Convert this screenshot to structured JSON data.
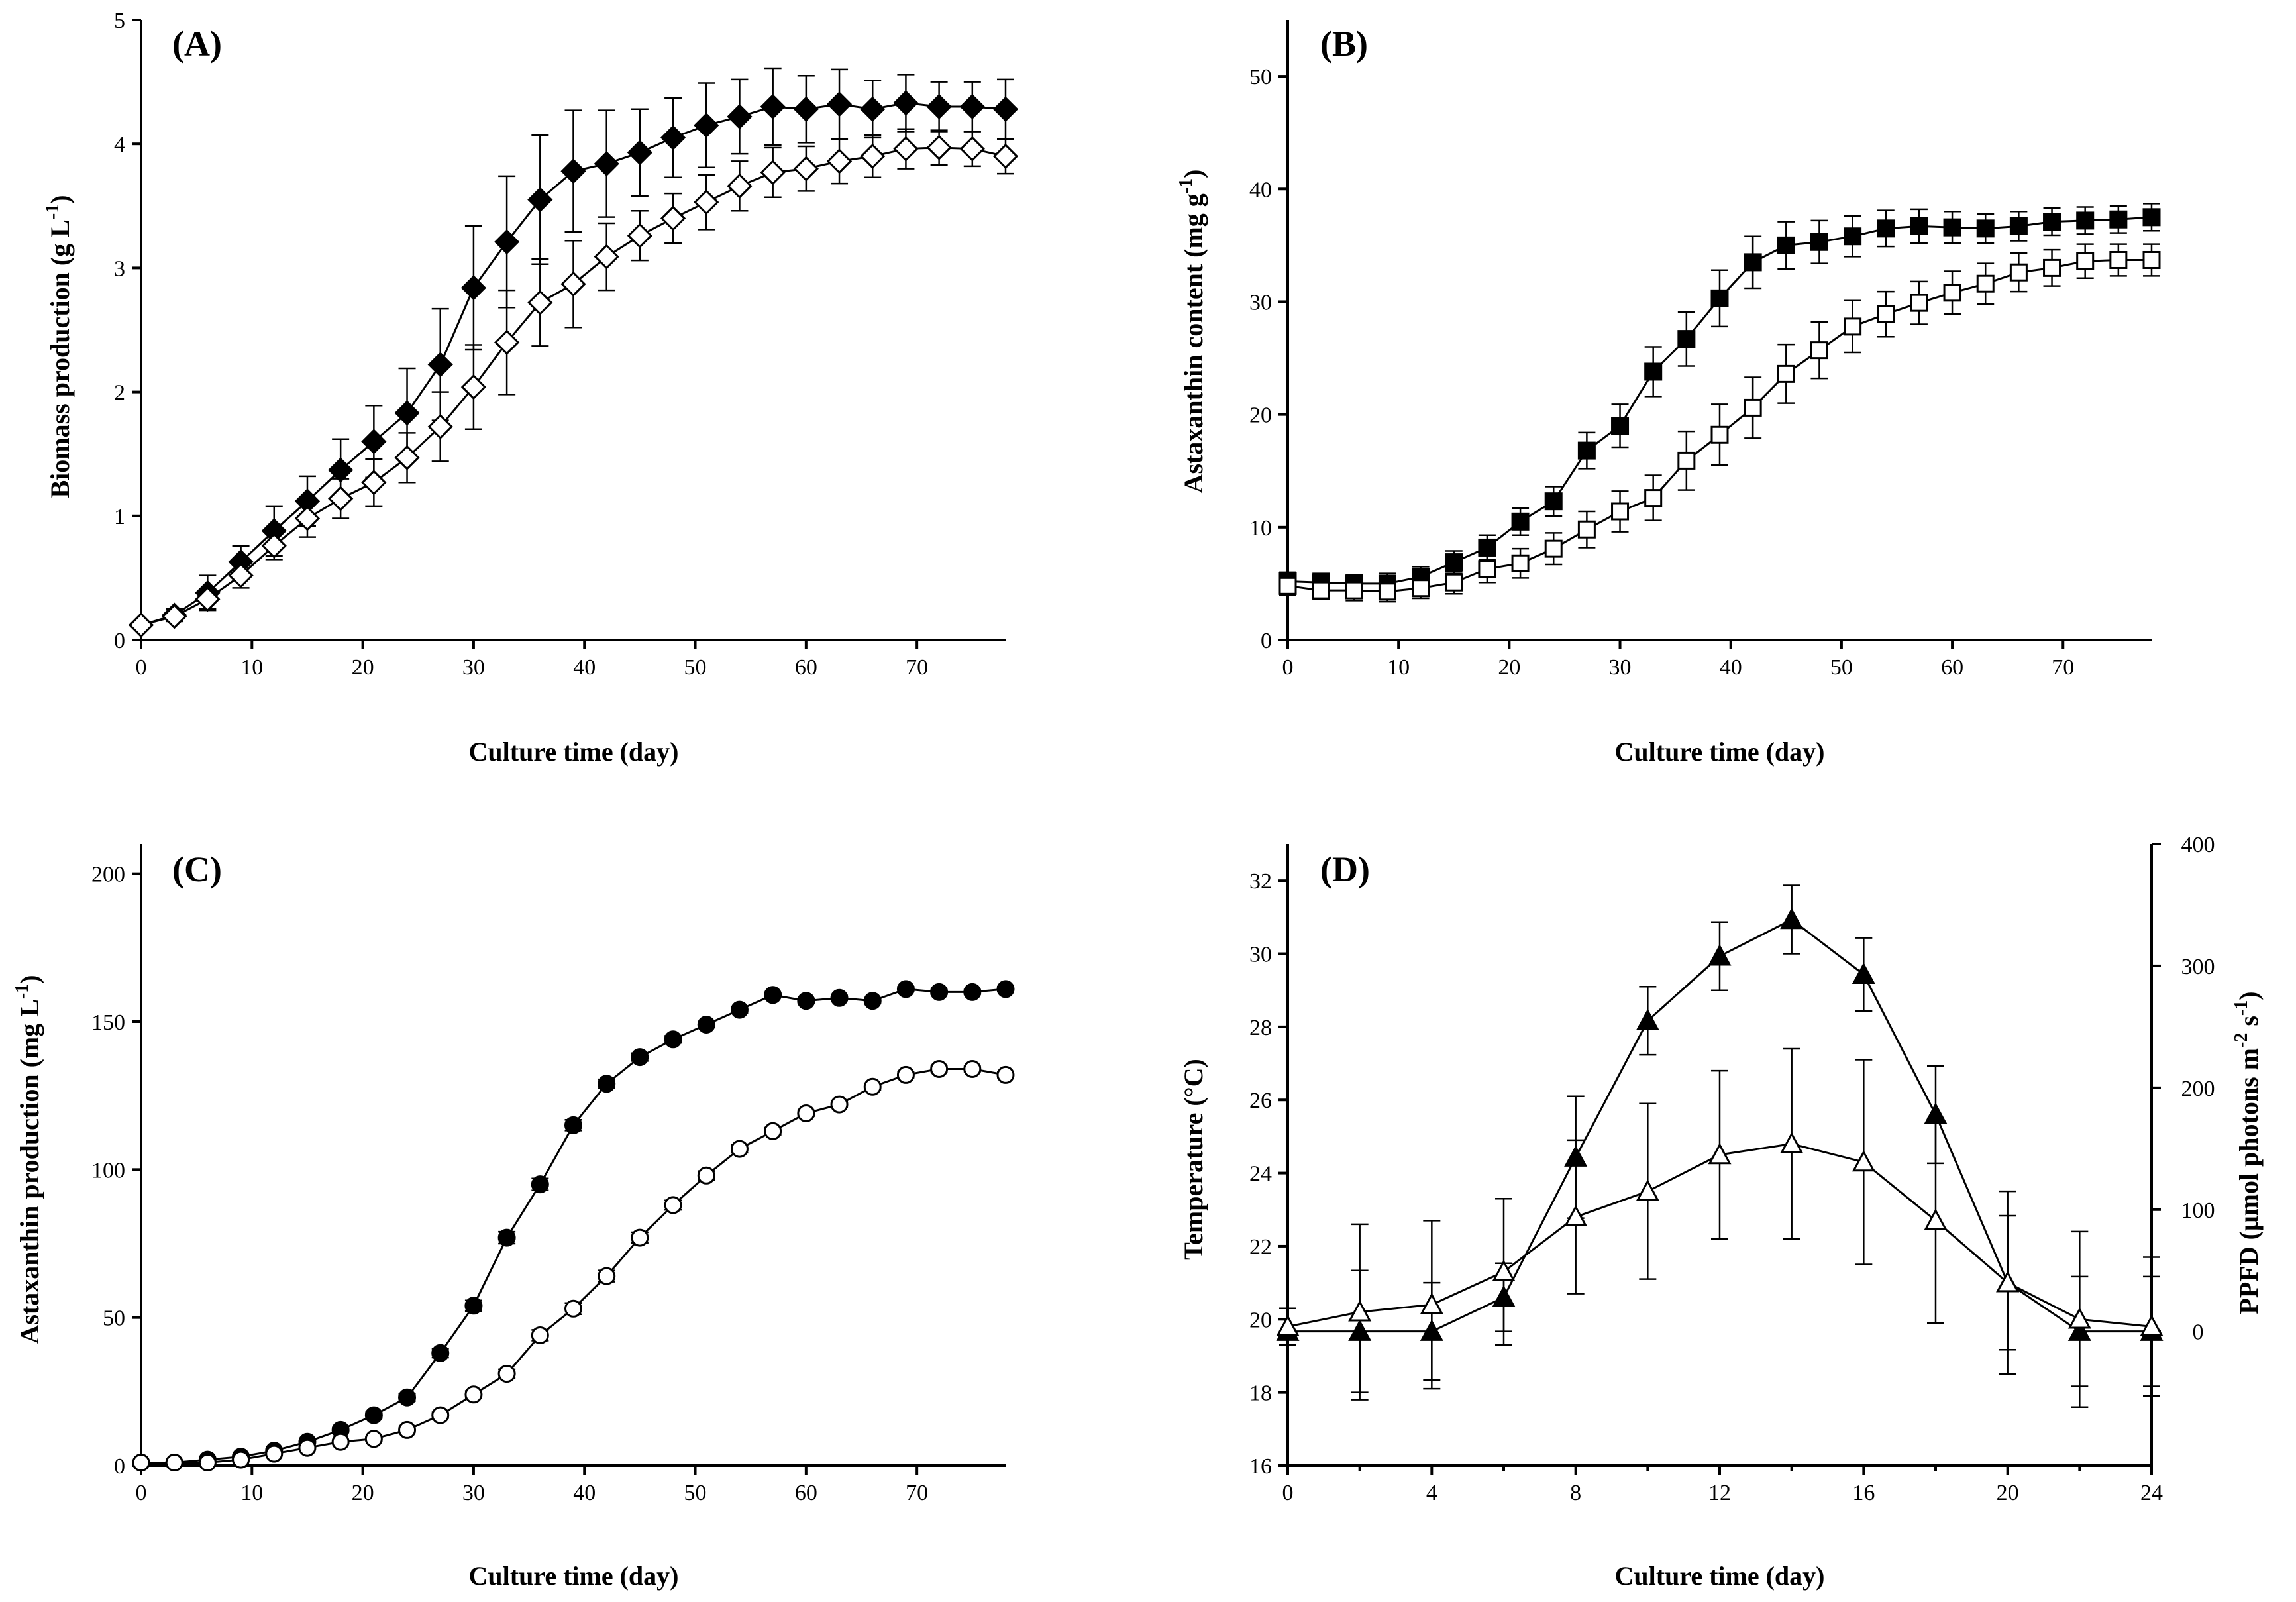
{
  "chart_data": [
    {
      "type": "line",
      "panel_label": "(A)",
      "xlabel": "Culture time (day)",
      "ylabel_main": "Biomass production (g L",
      "ylabel_sup": "-1",
      "ylabel_end": ")",
      "xlim": [
        0,
        78
      ],
      "ylim": [
        0,
        5
      ],
      "xticks": [
        0,
        10,
        20,
        30,
        40,
        50,
        60,
        70
      ],
      "yticks": [
        0,
        1,
        2,
        3,
        4,
        5
      ],
      "x": [
        0,
        3,
        6,
        9,
        12,
        15,
        18,
        21,
        24,
        27,
        30,
        33,
        36,
        39,
        42,
        45,
        48,
        51,
        54,
        57,
        60,
        63,
        66,
        69,
        72,
        75,
        78
      ],
      "series": [
        {
          "name": "filled diamond",
          "marker": "diamond",
          "filled": true,
          "values": [
            0.12,
            0.2,
            0.38,
            0.63,
            0.88,
            1.12,
            1.37,
            1.6,
            1.83,
            2.22,
            2.84,
            3.21,
            3.55,
            3.78,
            3.84,
            3.93,
            4.05,
            4.15,
            4.22,
            4.3,
            4.28,
            4.32,
            4.28,
            4.33,
            4.3,
            4.3,
            4.28
          ],
          "errors": [
            0.02,
            0.05,
            0.14,
            0.13,
            0.2,
            0.2,
            0.25,
            0.29,
            0.36,
            0.45,
            0.5,
            0.53,
            0.52,
            0.49,
            0.43,
            0.35,
            0.32,
            0.34,
            0.3,
            0.31,
            0.27,
            0.28,
            0.23,
            0.23,
            0.2,
            0.2,
            0.24
          ]
        },
        {
          "name": "open diamond",
          "marker": "diamond",
          "filled": false,
          "values": [
            0.12,
            0.19,
            0.33,
            0.52,
            0.76,
            0.98,
            1.14,
            1.27,
            1.47,
            1.72,
            2.04,
            2.4,
            2.72,
            2.87,
            3.09,
            3.26,
            3.4,
            3.53,
            3.66,
            3.77,
            3.8,
            3.86,
            3.9,
            3.96,
            3.97,
            3.96,
            3.9
          ],
          "errors": [
            0.02,
            0.04,
            0.08,
            0.1,
            0.11,
            0.15,
            0.16,
            0.19,
            0.2,
            0.28,
            0.34,
            0.42,
            0.35,
            0.35,
            0.27,
            0.2,
            0.2,
            0.22,
            0.2,
            0.2,
            0.18,
            0.18,
            0.17,
            0.16,
            0.14,
            0.14,
            0.14
          ]
        }
      ]
    },
    {
      "type": "line",
      "panel_label": "(B)",
      "xlabel": "Culture time (day)",
      "ylabel_main": "Astaxanthin content (mg g",
      "ylabel_sup": "-1",
      "ylabel_end": ")",
      "xlim": [
        0,
        78
      ],
      "ylim": [
        0,
        55
      ],
      "xticks": [
        0,
        10,
        20,
        30,
        40,
        50,
        60,
        70
      ],
      "yticks": [
        0,
        10,
        20,
        30,
        40,
        50
      ],
      "x": [
        0,
        3,
        6,
        9,
        12,
        15,
        18,
        21,
        24,
        27,
        30,
        33,
        36,
        39,
        42,
        45,
        48,
        51,
        54,
        57,
        60,
        63,
        66,
        69,
        72,
        75,
        78
      ],
      "series": [
        {
          "name": "filled square",
          "marker": "square",
          "filled": true,
          "values": [
            5.2,
            5.1,
            5.0,
            5.0,
            5.6,
            6.9,
            8.2,
            10.5,
            12.3,
            16.8,
            19.0,
            23.8,
            26.7,
            30.3,
            33.5,
            35.0,
            35.3,
            35.8,
            36.5,
            36.7,
            36.6,
            36.5,
            36.7,
            37.1,
            37.2,
            37.3,
            37.5
          ],
          "errors": [
            0.8,
            0.8,
            0.8,
            0.9,
            0.9,
            1.0,
            1.1,
            1.2,
            1.3,
            1.6,
            1.9,
            2.2,
            2.4,
            2.5,
            2.3,
            2.1,
            1.9,
            1.8,
            1.6,
            1.5,
            1.4,
            1.3,
            1.3,
            1.2,
            1.2,
            1.2,
            1.2
          ]
        },
        {
          "name": "open square",
          "marker": "square",
          "filled": false,
          "values": [
            4.8,
            4.4,
            4.4,
            4.3,
            4.6,
            5.1,
            6.3,
            6.8,
            8.1,
            9.8,
            11.4,
            12.6,
            15.9,
            18.2,
            20.6,
            23.6,
            25.7,
            27.8,
            28.9,
            29.9,
            30.8,
            31.6,
            32.6,
            33.0,
            33.6,
            33.7,
            33.7
          ],
          "errors": [
            0.8,
            0.8,
            0.9,
            0.9,
            0.9,
            1.0,
            1.2,
            1.3,
            1.4,
            1.6,
            1.8,
            2.0,
            2.6,
            2.7,
            2.7,
            2.6,
            2.5,
            2.3,
            2.0,
            1.9,
            1.9,
            1.8,
            1.7,
            1.6,
            1.5,
            1.4,
            1.4
          ]
        }
      ]
    },
    {
      "type": "line",
      "panel_label": "(C)",
      "xlabel": "Culture time (day)",
      "ylabel_main": "Astaxanthin production (mg L",
      "ylabel_sup": "-1",
      "ylabel_end": ")",
      "xlim": [
        0,
        78
      ],
      "ylim": [
        0,
        210
      ],
      "xticks": [
        0,
        10,
        20,
        30,
        40,
        50,
        60,
        70
      ],
      "yticks": [
        0,
        50,
        100,
        150,
        200
      ],
      "x": [
        0,
        3,
        6,
        9,
        12,
        15,
        18,
        21,
        24,
        27,
        30,
        33,
        36,
        39,
        42,
        45,
        48,
        51,
        54,
        57,
        60,
        63,
        66,
        69,
        72,
        75,
        78
      ],
      "series": [
        {
          "name": "filled circle",
          "marker": "circle",
          "filled": true,
          "values": [
            1,
            1,
            2,
            3,
            5,
            8,
            12,
            17,
            23,
            38,
            54,
            77,
            95,
            115,
            129,
            138,
            144,
            149,
            154,
            159,
            157,
            158,
            157,
            161,
            160,
            160,
            161
          ],
          "errors": [
            0.2,
            0.2,
            0.3,
            0.3,
            0.5,
            0.6,
            0.8,
            1.0,
            1.2,
            1.5,
            1.8,
            2.0,
            2.0,
            1.8,
            1.5,
            1.3,
            1.2,
            1.0,
            1.0,
            0.8,
            0.8,
            0.8,
            0.8,
            0.8,
            0.8,
            0.8,
            0.8
          ]
        },
        {
          "name": "open circle",
          "marker": "circle",
          "filled": false,
          "values": [
            1,
            1,
            1,
            2,
            4,
            6,
            8,
            9,
            12,
            17,
            24,
            31,
            44,
            53,
            64,
            77,
            88,
            98,
            107,
            113,
            119,
            122,
            128,
            132,
            134,
            134,
            132
          ],
          "errors": [
            0.2,
            0.2,
            0.2,
            0.3,
            0.4,
            0.5,
            0.6,
            0.7,
            0.8,
            1.0,
            1.2,
            1.5,
            1.8,
            1.9,
            1.9,
            1.8,
            1.6,
            1.5,
            1.3,
            1.2,
            1.0,
            1.0,
            1.0,
            0.9,
            0.9,
            0.9,
            0.9
          ]
        }
      ]
    },
    {
      "type": "line",
      "panel_label": "(D)",
      "xlabel": "Culture time (day)",
      "ylabel_left": "Temperature (°C)",
      "ylabel_right_main": "PPFD (μmol photons m",
      "ylabel_right_sup1": "-2",
      "ylabel_right_mid": " s",
      "ylabel_right_sup2": "-1",
      "ylabel_right_end": ")",
      "xlim": [
        0,
        24
      ],
      "ylim_left": [
        16,
        33
      ],
      "ylim_right": [
        -110,
        400
      ],
      "xticks": [
        0,
        4,
        8,
        12,
        16,
        20,
        24
      ],
      "yticks_left": [
        16,
        18,
        20,
        22,
        24,
        26,
        28,
        30,
        32
      ],
      "yticks_right": [
        0,
        100,
        200,
        300,
        400
      ],
      "x": [
        0,
        2,
        4,
        6,
        8,
        10,
        12,
        14,
        16,
        18,
        20,
        22,
        24
      ],
      "series": [
        {
          "name": "PPFD (filled triangle)",
          "axis": "right",
          "marker": "triangle",
          "filled": true,
          "values": [
            0,
            0,
            0,
            28,
            143,
            255,
            308,
            338,
            293,
            178,
            40,
            0,
            0
          ],
          "errors": [
            0,
            50,
            40,
            28,
            50,
            28,
            28,
            28,
            30,
            40,
            55,
            45,
            45
          ]
        },
        {
          "name": "Temperature (open triangle)",
          "axis": "left",
          "marker": "triangle",
          "filled": false,
          "values": [
            19.8,
            20.2,
            20.4,
            21.3,
            22.8,
            23.5,
            24.5,
            24.8,
            24.3,
            22.7,
            21.0,
            20.0,
            19.8
          ],
          "errors": [
            0.5,
            2.4,
            2.3,
            2.0,
            2.1,
            2.4,
            2.3,
            2.6,
            2.8,
            2.8,
            2.5,
            2.4,
            1.9
          ]
        }
      ]
    }
  ]
}
